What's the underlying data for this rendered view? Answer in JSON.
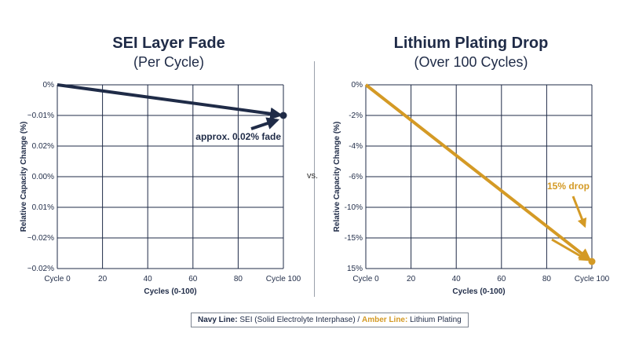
{
  "comparison_label": "vs.",
  "legend": {
    "navy_key": "Navy Line:",
    "navy_text": " SEI (Solid Electrolyte Interphase) / ",
    "amber_key": "Amber Line:",
    "amber_text": " Lithium Plating"
  },
  "colors": {
    "navy": "#1f2b47",
    "amber": "#d49a25",
    "grid": "#1f2b47"
  },
  "chart_data": [
    {
      "type": "line",
      "title": "SEI Layer Fade",
      "subtitle": "(Per Cycle)",
      "xlabel": "Cycles (0-100)",
      "ylabel": "Relative Capacity Change (%)",
      "x_ticks": [
        0,
        20,
        40,
        60,
        80,
        100
      ],
      "x_tick_labels": [
        "Cycle 0",
        "20",
        "40",
        "60",
        "80",
        "Cycle 100"
      ],
      "y_tick_labels": [
        "0%",
        "~0.01%",
        "0.02%",
        "0.00%",
        "0.01%",
        "~0.02%",
        "~0.02%"
      ],
      "grid": true,
      "series": [
        {
          "color": "navy",
          "x": [
            0,
            100
          ],
          "y": [
            0,
            -0.0036
          ]
        }
      ],
      "annotation": {
        "text": "approx. 0.02% fade"
      }
    },
    {
      "type": "line",
      "title": "Lithium Plating Drop",
      "subtitle": "(Over 100 Cycles)",
      "xlabel": "Cycles (0-100)",
      "ylabel": "Relative Capacity Change (%)",
      "x_ticks": [
        0,
        20,
        40,
        60,
        80,
        100
      ],
      "x_tick_labels": [
        "Cycle 0",
        "20",
        "40",
        "60",
        "80",
        "Cycle 100"
      ],
      "y_tick_labels": [
        "0%",
        "-2%",
        "-4%",
        "-6%",
        "-10%",
        "-15%",
        "15%"
      ],
      "grid": true,
      "series": [
        {
          "color": "amber",
          "x": [
            0,
            100
          ],
          "y": [
            0,
            -15
          ]
        }
      ],
      "annotation": {
        "text": "15% drop"
      }
    }
  ]
}
